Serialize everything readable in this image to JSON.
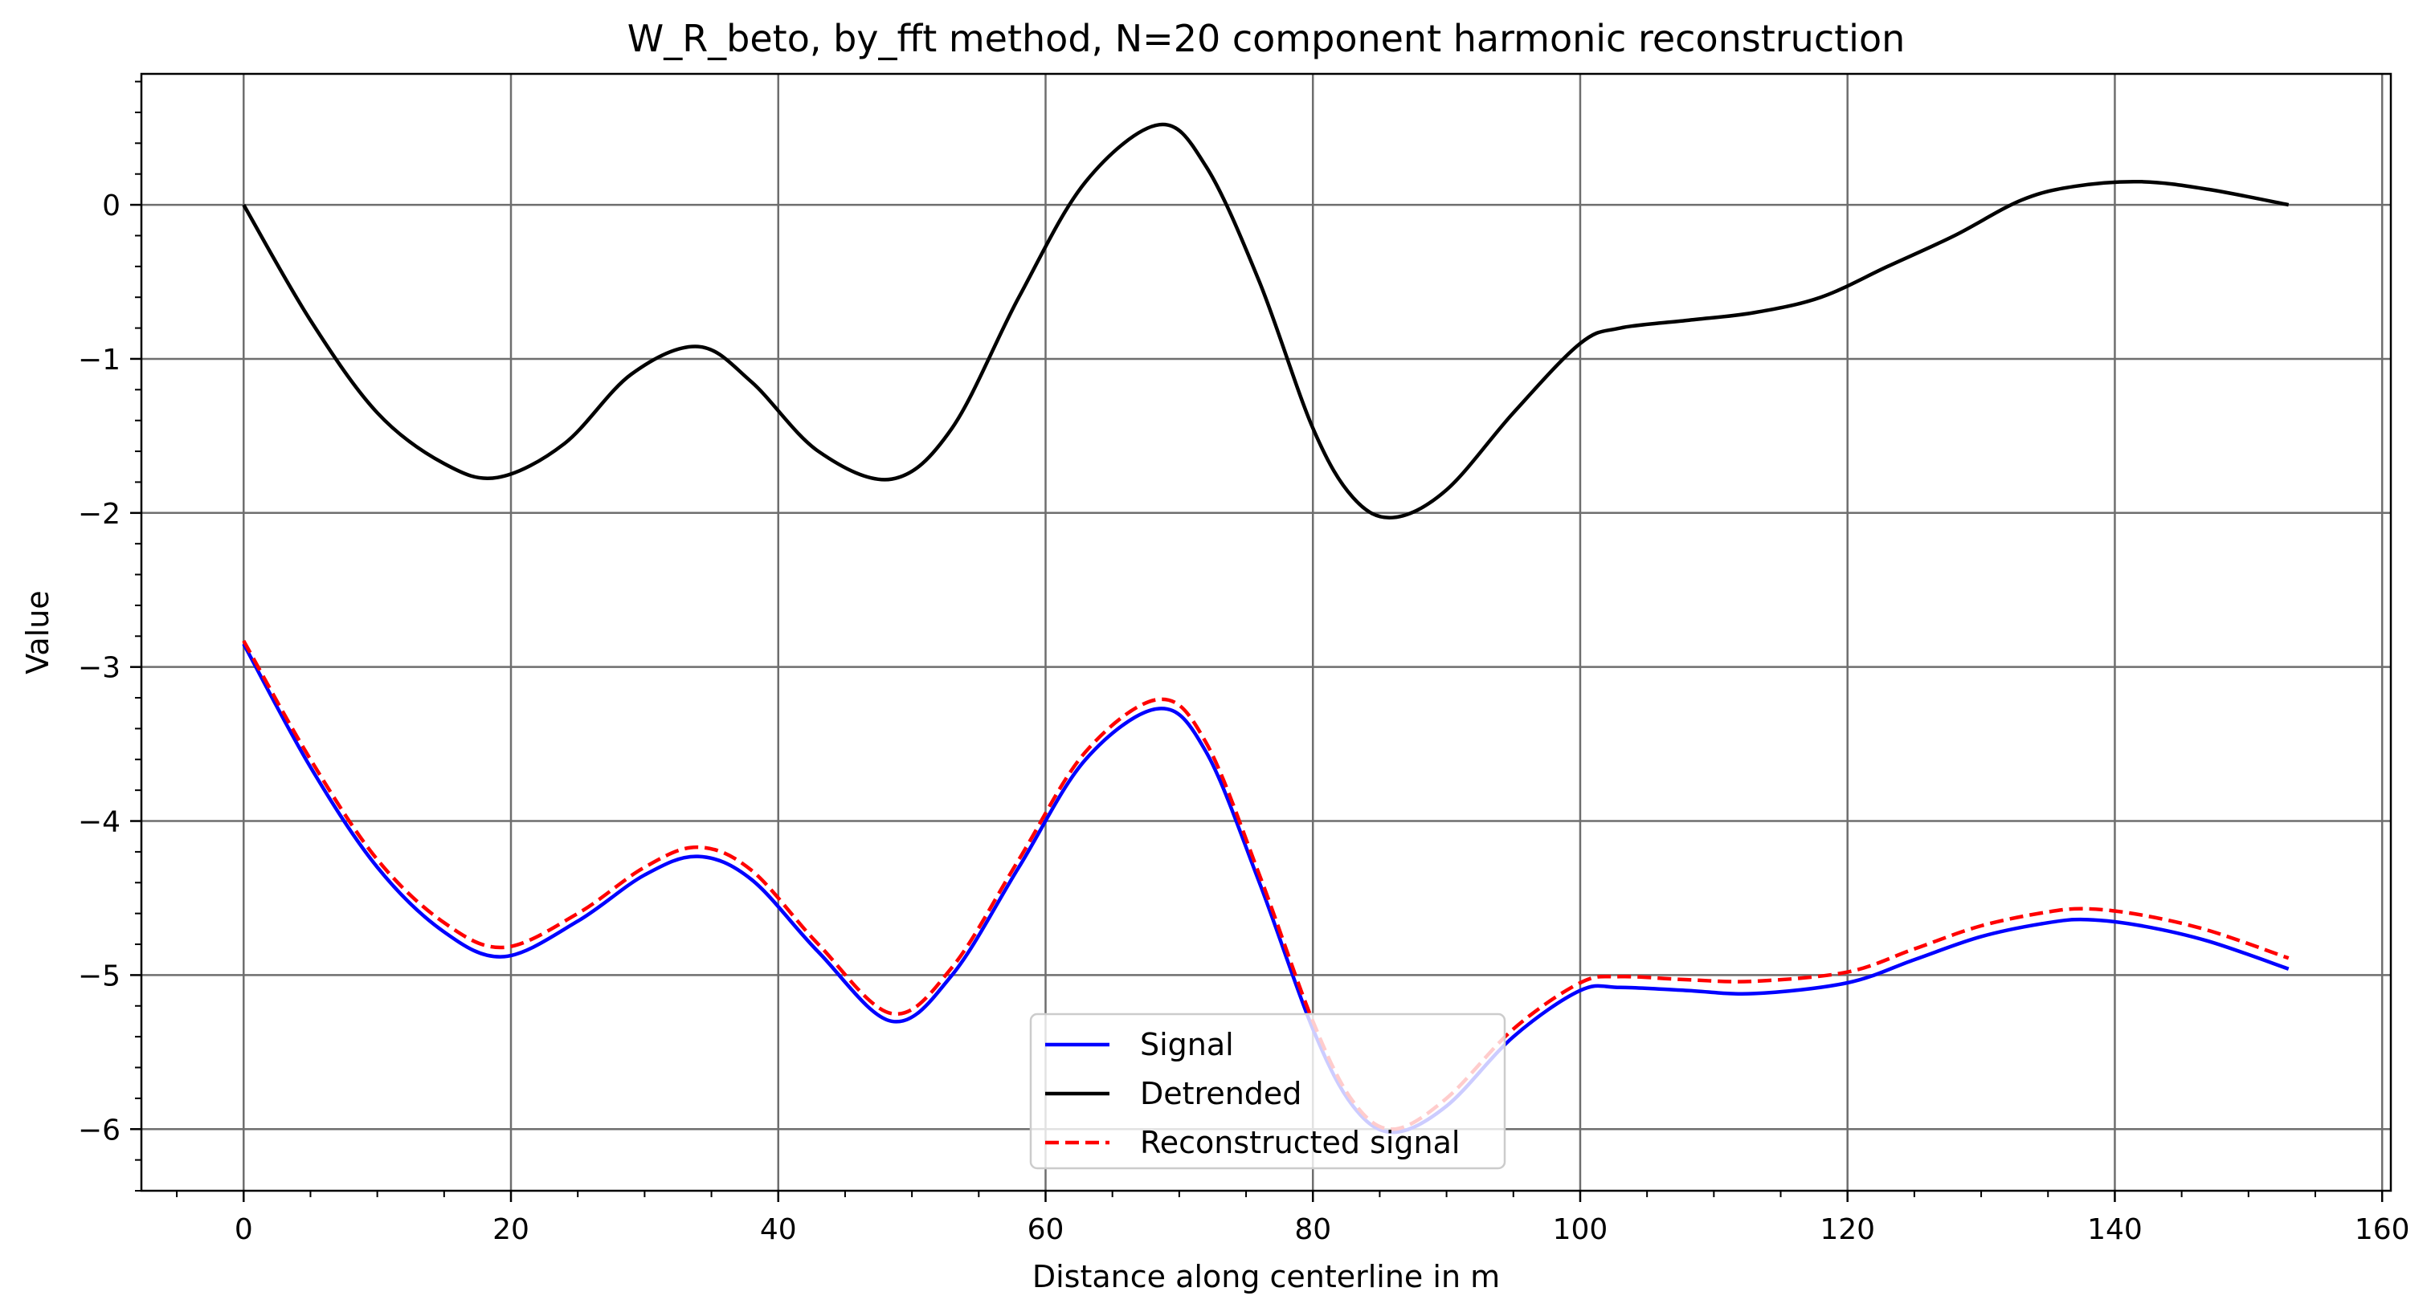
{
  "chart_data": {
    "type": "line",
    "title": "W_R_beto, by_fft method, N=20 component harmonic reconstruction",
    "xlabel": "Distance along centerline in m",
    "ylabel": "Value",
    "xlim": [
      -7.65,
      160.65
    ],
    "ylim": [
      -6.4,
      0.85
    ],
    "xticks": [
      0,
      20,
      40,
      60,
      80,
      100,
      120,
      140,
      160
    ],
    "xtick_labels": [
      "0",
      "20",
      "40",
      "60",
      "80",
      "100",
      "120",
      "140",
      "160"
    ],
    "xminor_step": 5,
    "yticks": [
      -6,
      -5,
      -4,
      -3,
      -2,
      -1,
      0
    ],
    "ytick_labels": [
      "−6",
      "−5",
      "−4",
      "−3",
      "−2",
      "−1",
      "0"
    ],
    "yminor_step": 0.2,
    "grid": true,
    "legend_position": "lower center",
    "series": [
      {
        "name": "Signal",
        "color": "#0000ff",
        "linestyle": "solid",
        "x": [
          0,
          5,
          10,
          15,
          19.5,
          25,
          30,
          34,
          38,
          43,
          48.5,
          53,
          58,
          63,
          68.5,
          72,
          76,
          80,
          83,
          86,
          90,
          95,
          100,
          103,
          108,
          113,
          120,
          125,
          130,
          135,
          138,
          142,
          147,
          153
        ],
        "y": [
          -2.85,
          -3.65,
          -4.3,
          -4.72,
          -4.88,
          -4.65,
          -4.35,
          -4.23,
          -4.38,
          -4.85,
          -5.3,
          -5.0,
          -4.3,
          -3.6,
          -3.27,
          -3.55,
          -4.4,
          -5.35,
          -5.85,
          -6.02,
          -5.85,
          -5.4,
          -5.1,
          -5.08,
          -5.1,
          -5.12,
          -5.05,
          -4.9,
          -4.75,
          -4.66,
          -4.64,
          -4.68,
          -4.78,
          -4.96
        ]
      },
      {
        "name": "Detrended",
        "color": "#000000",
        "linestyle": "solid",
        "x": [
          0,
          5,
          10,
          15,
          19,
          24,
          29,
          34,
          38,
          43,
          48.5,
          53,
          58,
          63,
          68.5,
          72,
          76,
          80,
          83,
          86,
          90,
          95,
          100,
          103,
          108,
          113,
          118,
          123,
          128,
          133,
          137,
          142,
          147,
          153
        ],
        "y": [
          0,
          -0.75,
          -1.35,
          -1.68,
          -1.77,
          -1.55,
          -1.1,
          -0.92,
          -1.15,
          -1.6,
          -1.78,
          -1.45,
          -0.6,
          0.15,
          0.52,
          0.25,
          -0.5,
          -1.45,
          -1.9,
          -2.03,
          -1.85,
          -1.35,
          -0.9,
          -0.8,
          -0.75,
          -0.7,
          -0.6,
          -0.4,
          -0.2,
          0.03,
          0.12,
          0.15,
          0.1,
          0.0
        ]
      },
      {
        "name": "Reconstructed signal",
        "color": "#ff0000",
        "linestyle": "dashed",
        "x": [
          0,
          5,
          10,
          15,
          19.5,
          25,
          30,
          34,
          38,
          43,
          48.5,
          53,
          58,
          63,
          68.5,
          72,
          76,
          80,
          83,
          86,
          90,
          95,
          100,
          103,
          108,
          113,
          120,
          125,
          130,
          135,
          138,
          142,
          147,
          153
        ],
        "y": [
          -2.83,
          -3.6,
          -4.25,
          -4.66,
          -4.82,
          -4.6,
          -4.3,
          -4.17,
          -4.32,
          -4.8,
          -5.25,
          -4.95,
          -4.25,
          -3.55,
          -3.21,
          -3.49,
          -4.35,
          -5.3,
          -5.82,
          -6.0,
          -5.8,
          -5.35,
          -5.05,
          -5.01,
          -5.03,
          -5.04,
          -4.98,
          -4.83,
          -4.68,
          -4.59,
          -4.57,
          -4.61,
          -4.71,
          -4.89
        ]
      }
    ]
  }
}
